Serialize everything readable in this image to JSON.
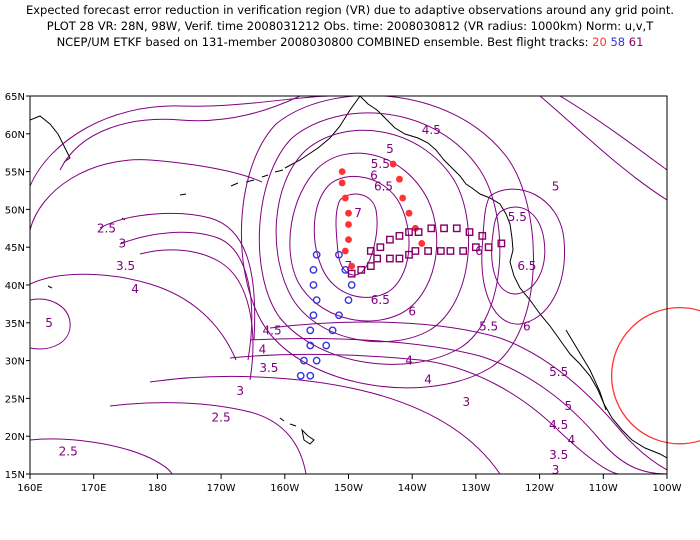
{
  "header": {
    "line1": "Expected forecast error reduction in verification region (VR) due to adaptive observations around any grid point.",
    "line2": "PLOT 28 VR: 28N, 98W, Verif. time 2008031212 Obs. time: 2008030812 (VR radius: 1000km) Norm: u,v,T",
    "line3_prefix": "NCEP/UM ETKF based on 131-member 2008030800 COMBINED ensemble.  Best flight tracks: ",
    "tracks": [
      {
        "num": "20",
        "color": "#ff3333"
      },
      {
        "num": "58",
        "color": "#3333dd"
      },
      {
        "num": "61",
        "color": "#880066"
      }
    ]
  },
  "axes": {
    "lon_labels": [
      "160E",
      "170E",
      "180",
      "170W",
      "160W",
      "150W",
      "140W",
      "130W",
      "120W",
      "110W",
      "100W"
    ],
    "lat_labels": [
      "15N",
      "20N",
      "25N",
      "30N",
      "35N",
      "40N",
      "45N",
      "50N",
      "55N",
      "60N",
      "65N"
    ]
  },
  "contour_labels": [
    {
      "text": "4.5",
      "lon": -137,
      "lat": 60.5
    },
    {
      "text": "5",
      "lon": -143.5,
      "lat": 58
    },
    {
      "text": "5.5",
      "lon": -145,
      "lat": 56
    },
    {
      "text": "6",
      "lon": -146,
      "lat": 54.5
    },
    {
      "text": "6.5",
      "lon": -144.5,
      "lat": 53
    },
    {
      "text": "7",
      "lon": -148.5,
      "lat": 49.5
    },
    {
      "text": "7",
      "lon": -150,
      "lat": 42.5
    },
    {
      "text": "6.5",
      "lon": -145,
      "lat": 38
    },
    {
      "text": "6",
      "lon": -140,
      "lat": 36.5
    },
    {
      "text": "5.5",
      "lon": -128,
      "lat": 34.5
    },
    {
      "text": "6",
      "lon": -122,
      "lat": 34.5
    },
    {
      "text": "5.5",
      "lon": -123.5,
      "lat": 49
    },
    {
      "text": "6",
      "lon": -129.5,
      "lat": 44.5
    },
    {
      "text": "6.5",
      "lon": -122,
      "lat": 42.5
    },
    {
      "text": "5",
      "lon": -117.5,
      "lat": 53
    },
    {
      "text": "5.5",
      "lon": -117,
      "lat": 28.5
    },
    {
      "text": "5",
      "lon": -115.5,
      "lat": 24
    },
    {
      "text": "4.5",
      "lon": -117,
      "lat": 21.5
    },
    {
      "text": "4",
      "lon": -115,
      "lat": 19.5
    },
    {
      "text": "3.5",
      "lon": -117,
      "lat": 17.5
    },
    {
      "text": "3",
      "lon": -117.5,
      "lat": 15.5
    },
    {
      "text": "4",
      "lon": -137.5,
      "lat": 27.5
    },
    {
      "text": "3",
      "lon": -131.5,
      "lat": 24.5
    },
    {
      "text": "4",
      "lon": -140.5,
      "lat": 30
    },
    {
      "text": "4.5",
      "lon": -162,
      "lat": 34
    },
    {
      "text": "4",
      "lon": -163.5,
      "lat": 31.5
    },
    {
      "text": "3.5",
      "lon": -162.5,
      "lat": 29
    },
    {
      "text": "3",
      "lon": -167,
      "lat": 26
    },
    {
      "text": "2.5",
      "lon": -170,
      "lat": 22.5
    },
    {
      "text": "2.5",
      "lon": 166,
      "lat": 18
    },
    {
      "text": "2.5",
      "lon": 172,
      "lat": 47.5
    },
    {
      "text": "3",
      "lon": 174.5,
      "lat": 45.5
    },
    {
      "text": "3.5",
      "lon": 175,
      "lat": 42.5
    },
    {
      "text": "4",
      "lon": 176.5,
      "lat": 39.5
    },
    {
      "text": "5",
      "lon": 163,
      "lat": 35
    }
  ],
  "tracks": {
    "red_dots": [
      [
        -151,
        55
      ],
      [
        -151,
        53.5
      ],
      [
        -150.5,
        51.5
      ],
      [
        -150,
        49.5
      ],
      [
        -150,
        48
      ],
      [
        -150,
        46
      ],
      [
        -150.5,
        44.5
      ],
      [
        -149.5,
        42.5
      ],
      [
        -143,
        56
      ],
      [
        -142,
        54
      ],
      [
        -141.5,
        51.5
      ],
      [
        -140.5,
        49.5
      ],
      [
        -139.5,
        47.5
      ],
      [
        -138.5,
        45.5
      ]
    ],
    "blue_circles": [
      [
        -155,
        44
      ],
      [
        -155.5,
        42
      ],
      [
        -155.5,
        40
      ],
      [
        -155,
        38
      ],
      [
        -155.5,
        36
      ],
      [
        -156,
        34
      ],
      [
        -156,
        32
      ],
      [
        -157,
        30
      ],
      [
        -157.5,
        28
      ],
      [
        -151.5,
        44
      ],
      [
        -150.5,
        42
      ],
      [
        -149.5,
        40
      ],
      [
        -150,
        38
      ],
      [
        -151.5,
        36
      ],
      [
        -152.5,
        34
      ],
      [
        -153.5,
        32
      ],
      [
        -155,
        30
      ],
      [
        -156,
        28
      ]
    ],
    "purple_squares": [
      [
        -149.5,
        41.5
      ],
      [
        -148,
        42
      ],
      [
        -146.5,
        42.5
      ],
      [
        -145.5,
        43.5
      ],
      [
        -143.5,
        43.5
      ],
      [
        -142,
        43.5
      ],
      [
        -140.5,
        44
      ],
      [
        -139.5,
        44.5
      ],
      [
        -137.5,
        44.5
      ],
      [
        -135.5,
        44.5
      ],
      [
        -134,
        44.5
      ],
      [
        -132,
        44.5
      ],
      [
        -130,
        45
      ],
      [
        -128,
        45
      ],
      [
        -126,
        45.5
      ],
      [
        -146.5,
        44.5
      ],
      [
        -145,
        45
      ],
      [
        -143.5,
        46
      ],
      [
        -142,
        46.5
      ],
      [
        -140.5,
        47
      ],
      [
        -139,
        47
      ],
      [
        -137,
        47.5
      ],
      [
        -135,
        47.5
      ],
      [
        -133,
        47.5
      ],
      [
        -131,
        47
      ],
      [
        -129,
        46.5
      ]
    ]
  },
  "verification_region": {
    "lon": -98,
    "lat": 28,
    "radius_km": 1000
  }
}
